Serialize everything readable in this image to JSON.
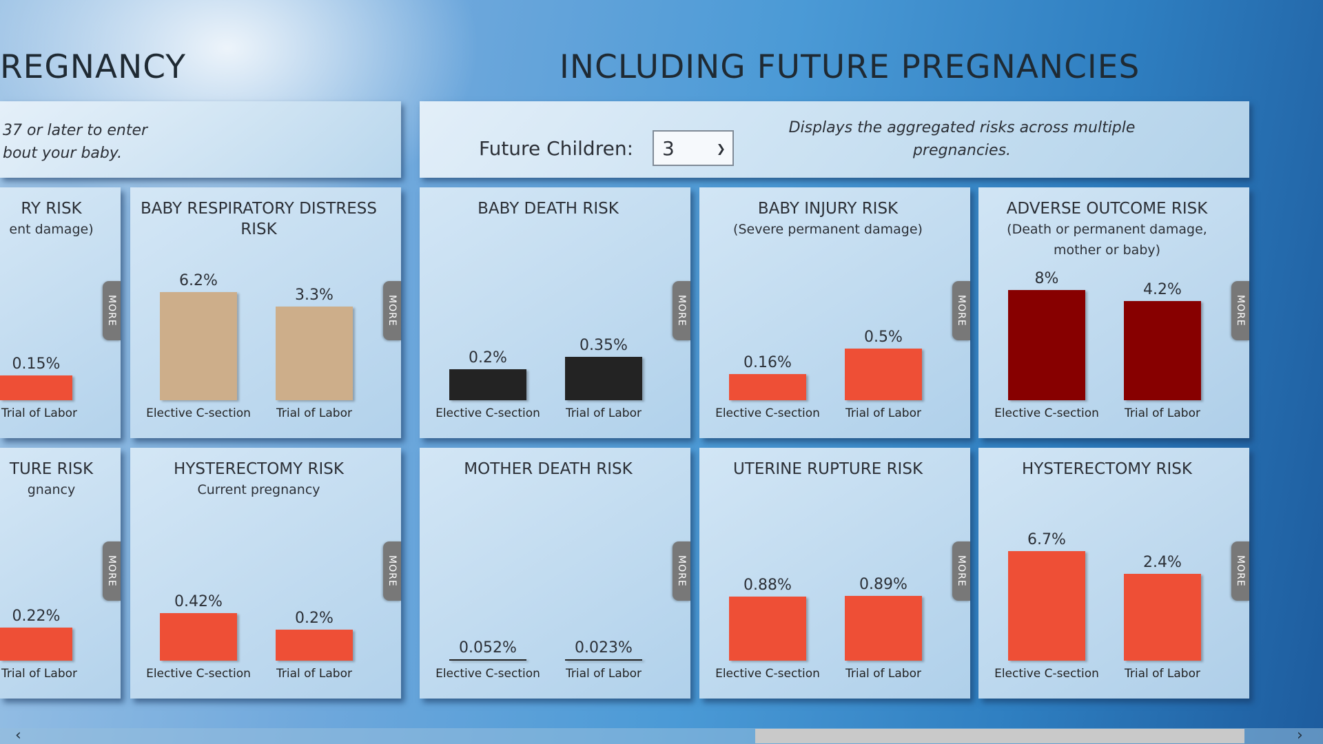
{
  "headings": {
    "left": "REGNANCY",
    "right": "INCLUDING FUTURE PREGNANCIES"
  },
  "left_panel": {
    "line1": "37 or later to enter",
    "line2": "bout your baby."
  },
  "right_panel": {
    "future_children_label": "Future Children:",
    "future_children_value": "3",
    "description": "Displays the aggregated risks across multiple pregnancies."
  },
  "more_label": "MORE",
  "categories": [
    "Elective C-section",
    "Trial of Labor"
  ],
  "colors": {
    "red": "#ee4f36",
    "tan": "#cdae8a",
    "black": "#232323",
    "darkred": "#870000"
  },
  "scrollbar": {
    "left_arrow": "‹",
    "right_arrow": "›"
  },
  "chart_data": [
    {
      "type": "bar",
      "title": "RY RISK",
      "subtitle": "ent damage)",
      "values": [
        null,
        0.15
      ],
      "labels": [
        "",
        "0.15%"
      ],
      "color": "red",
      "row": 0,
      "col": 0
    },
    {
      "type": "bar",
      "title": "BABY RESPIRATORY DISTRESS RISK",
      "subtitle": "",
      "values": [
        6.2,
        3.3
      ],
      "labels": [
        "6.2%",
        "3.3%"
      ],
      "color": "tan",
      "row": 0,
      "col": 1
    },
    {
      "type": "bar",
      "title": "BABY DEATH RISK",
      "subtitle": "",
      "values": [
        0.2,
        0.35
      ],
      "labels": [
        "0.2%",
        "0.35%"
      ],
      "color": "black",
      "row": 0,
      "col": 2
    },
    {
      "type": "bar",
      "title": "BABY INJURY RISK",
      "subtitle": "(Severe permanent damage)",
      "values": [
        0.16,
        0.5
      ],
      "labels": [
        "0.16%",
        "0.5%"
      ],
      "color": "red",
      "row": 0,
      "col": 3
    },
    {
      "type": "bar",
      "title": "ADVERSE OUTCOME RISK",
      "subtitle": "(Death or permanent damage, mother or baby)",
      "values": [
        8,
        4.2
      ],
      "labels": [
        "8%",
        "4.2%"
      ],
      "color": "darkred",
      "row": 0,
      "col": 4
    },
    {
      "type": "bar",
      "title": "TURE RISK",
      "subtitle": "gnancy",
      "values": [
        null,
        0.22
      ],
      "labels": [
        "",
        "0.22%"
      ],
      "color": "red",
      "row": 1,
      "col": 0
    },
    {
      "type": "bar",
      "title": "HYSTERECTOMY RISK",
      "subtitle": "Current pregnancy",
      "values": [
        0.42,
        0.2
      ],
      "labels": [
        "0.42%",
        "0.2%"
      ],
      "color": "red",
      "row": 1,
      "col": 1
    },
    {
      "type": "bar",
      "title": "MOTHER DEATH RISK",
      "subtitle": "",
      "values": [
        0.052,
        0.023
      ],
      "labels": [
        "0.052%",
        "0.023%"
      ],
      "color": "black",
      "row": 1,
      "col": 2
    },
    {
      "type": "bar",
      "title": "UTERINE RUPTURE RISK",
      "subtitle": "",
      "values": [
        0.88,
        0.89
      ],
      "labels": [
        "0.88%",
        "0.89%"
      ],
      "color": "red",
      "row": 1,
      "col": 3
    },
    {
      "type": "bar",
      "title": "HYSTERECTOMY RISK",
      "subtitle": "",
      "values": [
        6.7,
        2.4
      ],
      "labels": [
        "6.7%",
        "2.4%"
      ],
      "color": "red",
      "row": 1,
      "col": 4
    }
  ]
}
